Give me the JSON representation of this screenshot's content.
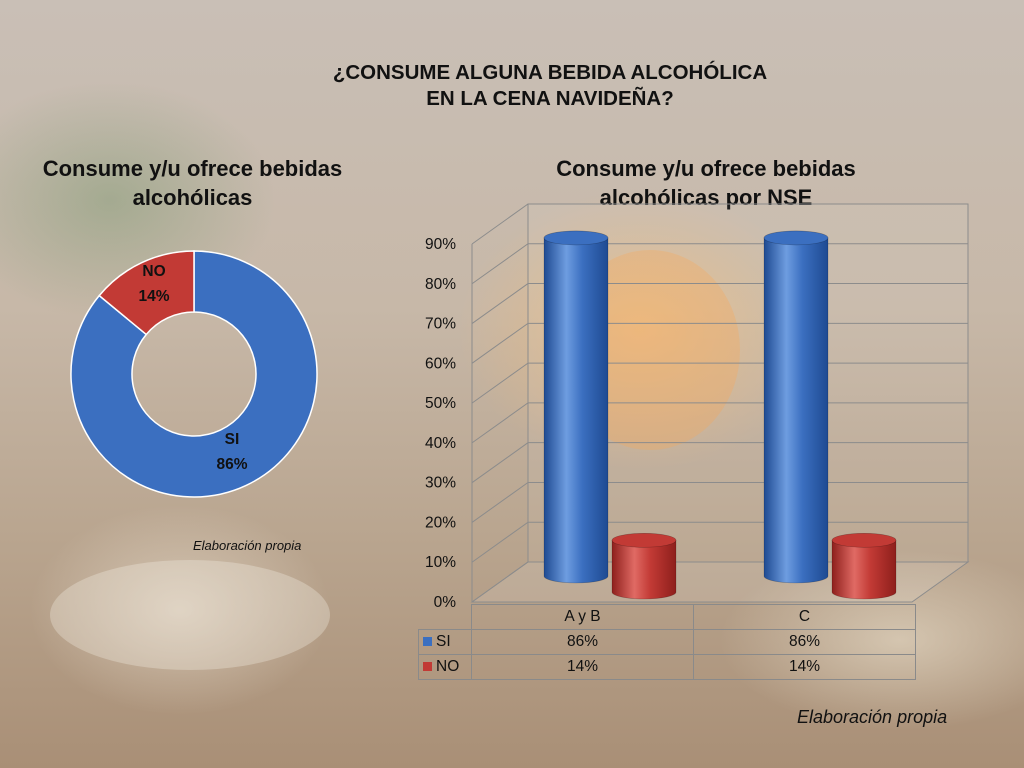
{
  "slide": {
    "title": "¿CONSUME ALGUNA BEBIDA ALCOHÓLICA\nEN LA CENA NAVIDEÑA?",
    "colors": {
      "si": "#3b6fc0",
      "no": "#c23a35"
    }
  },
  "donut": {
    "title": "Consume y/u ofrece bebidas\nalcohólicas",
    "source": "Elaboración propia"
  },
  "bar": {
    "title": "Consume y/u ofrece bebidas\nalcohólicas por NSE",
    "source": "Elaboración propia",
    "table": {
      "headers": [
        "A y B",
        "C"
      ],
      "rows": [
        {
          "label": "SI",
          "values": [
            "86%",
            "86%"
          ]
        },
        {
          "label": "NO",
          "values": [
            "14%",
            "14%"
          ]
        }
      ]
    }
  },
  "chart_data": [
    {
      "type": "pie",
      "title": "Consume y/u ofrece bebidas alcohólicas",
      "labels": [
        "SI",
        "NO"
      ],
      "values": [
        86,
        14
      ],
      "value_labels": [
        "86%",
        "14%"
      ],
      "colors": [
        "#3b6fc0",
        "#c23a35"
      ],
      "style": "donut"
    },
    {
      "type": "bar",
      "title": "Consume y/u ofrece bebidas alcohólicas por NSE",
      "categories": [
        "A y B",
        "C"
      ],
      "series": [
        {
          "name": "SI",
          "values": [
            86,
            86
          ],
          "color": "#3b6fc0"
        },
        {
          "name": "NO",
          "values": [
            14,
            14
          ],
          "color": "#c23a35"
        }
      ],
      "ylim": [
        0,
        90
      ],
      "yticks": [
        "0%",
        "10%",
        "20%",
        "30%",
        "40%",
        "50%",
        "60%",
        "70%",
        "80%",
        "90%"
      ],
      "grid": true,
      "style": "3d-cylinder"
    }
  ]
}
